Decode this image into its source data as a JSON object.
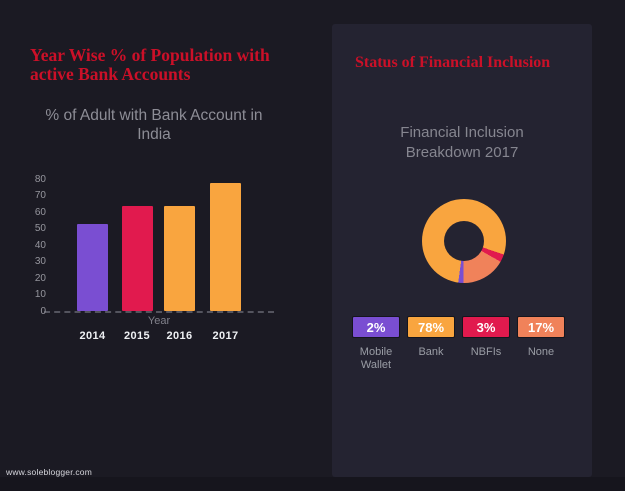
{
  "page": {
    "background": "#1b1a23",
    "card_background": "#242331",
    "accent_red": "#cb1028",
    "footer": "www.soleblogger.com"
  },
  "left_panel": {
    "heading": "Year Wise % of Population with active Bank Accounts"
  },
  "right_panel": {
    "heading": "Status of Financial Inclusion"
  },
  "chart_data": [
    {
      "type": "bar",
      "title": "% of Adult with Bank Account in India",
      "categories": [
        "2014",
        "2015",
        "2016",
        "2017"
      ],
      "values": [
        53,
        64,
        64,
        78
      ],
      "colors": [
        "#7a4ed2",
        "#e11a4e",
        "#f9a53f",
        "#f9a53f"
      ],
      "xlabel": "Year",
      "ylabel": "",
      "ylim": [
        0,
        80
      ],
      "yticks": [
        0,
        10,
        20,
        30,
        40,
        50,
        60,
        70,
        80
      ],
      "grid": false,
      "baseline_style": "dashed",
      "tick_label_color": "#96969e",
      "category_label_color": "#eef0f3"
    },
    {
      "type": "pie",
      "donut": true,
      "title": "Financial Inclusion Breakdown 2017",
      "slices": [
        {
          "label": "Mobile Wallet",
          "value": 2,
          "percent_label": "2%",
          "color": "#7a4ed2"
        },
        {
          "label": "Bank",
          "value": 78,
          "percent_label": "78%",
          "color": "#f9a53f"
        },
        {
          "label": "NBFIs",
          "value": 3,
          "percent_label": "3%",
          "color": "#e11a4e"
        },
        {
          "label": "None",
          "value": 17,
          "percent_label": "17%",
          "color": "#f0825a"
        }
      ],
      "draw_order": [
        1,
        2,
        3,
        0
      ],
      "start_angle_deg": 188,
      "legend_position": "bottom"
    }
  ]
}
